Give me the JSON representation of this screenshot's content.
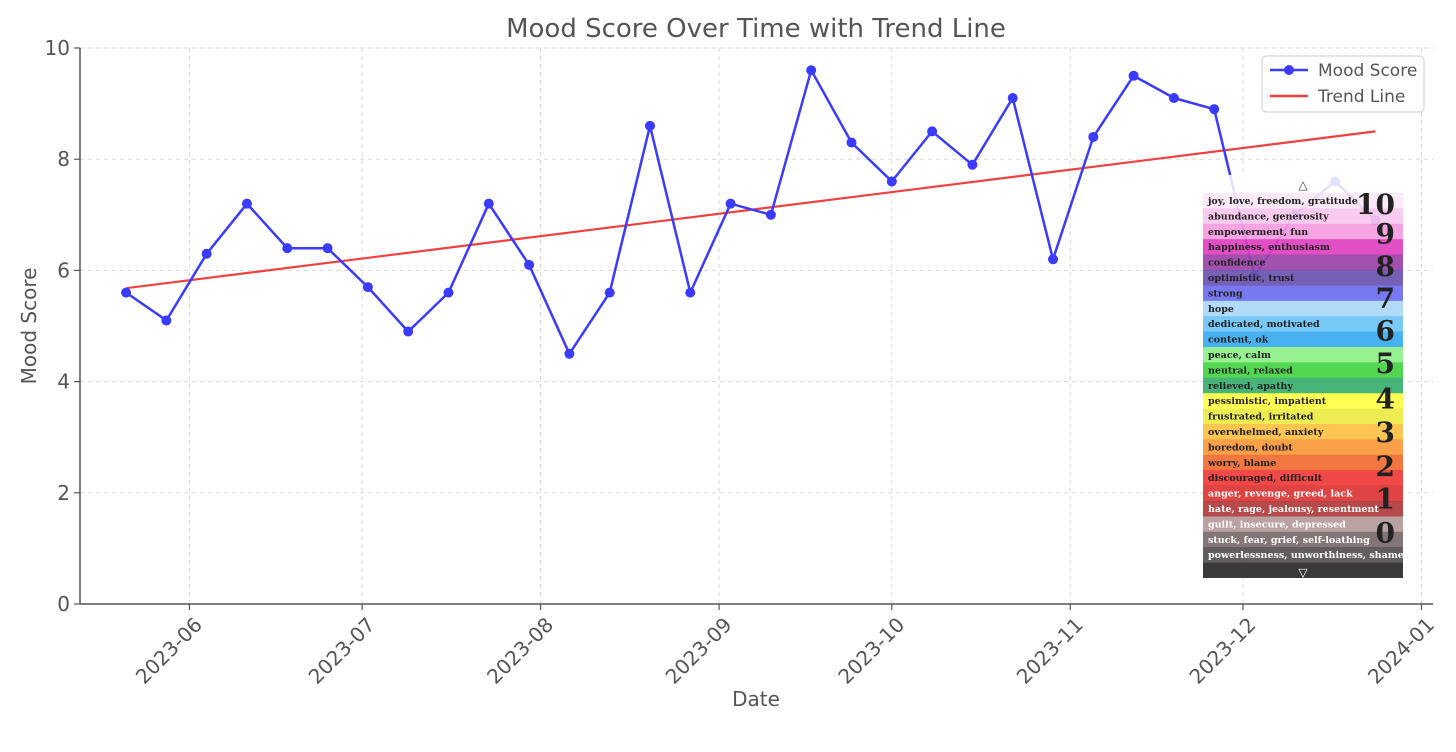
{
  "chart_data": {
    "type": "line",
    "title": "Mood Score Over Time with Trend Line",
    "xlabel": "Date",
    "ylabel": "Mood Score",
    "ylim": [
      0,
      10
    ],
    "yticks": [
      0,
      2,
      4,
      6,
      8,
      10
    ],
    "xlim": [
      "2023-05-13",
      "2024-01-03"
    ],
    "xticks": [
      "2023-06-01",
      "2023-07-01",
      "2023-08-01",
      "2023-09-01",
      "2023-10-01",
      "2023-11-01",
      "2023-12-01",
      "2024-01-01"
    ],
    "xtick_labels": [
      "2023-06",
      "2023-07",
      "2023-08",
      "2023-09",
      "2023-10",
      "2023-11",
      "2023-12",
      "2024-01"
    ],
    "grid": true,
    "legend": "top-right",
    "series": [
      {
        "name": "Mood Score",
        "color": "#3b3bff",
        "marker": "circle",
        "x": [
          "2023-05-21",
          "2023-05-28",
          "2023-06-04",
          "2023-06-11",
          "2023-06-18",
          "2023-06-25",
          "2023-07-02",
          "2023-07-09",
          "2023-07-16",
          "2023-07-23",
          "2023-07-30",
          "2023-08-06",
          "2023-08-13",
          "2023-08-20",
          "2023-08-27",
          "2023-09-03",
          "2023-09-10",
          "2023-09-17",
          "2023-09-24",
          "2023-10-01",
          "2023-10-08",
          "2023-10-15",
          "2023-10-22",
          "2023-10-29",
          "2023-11-05",
          "2023-11-12",
          "2023-11-19",
          "2023-11-26",
          "2023-12-03",
          "2023-12-10",
          "2023-12-17",
          "2023-12-24"
        ],
        "values": [
          5.6,
          5.1,
          6.3,
          7.2,
          6.4,
          6.4,
          5.7,
          4.9,
          5.6,
          7.2,
          6.1,
          4.5,
          5.6,
          8.6,
          5.6,
          7.2,
          7.0,
          9.6,
          8.3,
          7.6,
          8.5,
          7.9,
          9.1,
          6.2,
          8.4,
          9.5,
          9.1,
          8.9,
          5.9,
          7.0,
          7.6,
          6.9
        ]
      },
      {
        "name": "Trend Line",
        "color": "#f04040",
        "x": [
          "2023-05-21",
          "2023-12-24"
        ],
        "values": [
          5.68,
          8.5
        ]
      }
    ]
  },
  "mood_scale": {
    "top_arrow": "△",
    "bottom_arrow": "▽",
    "rows": [
      {
        "label": "joy, love, freedom, gratitude",
        "color": "#fce8f8",
        "text_color": "#222222"
      },
      {
        "label": "abundance, generosity",
        "color": "#f9c8ee",
        "text_color": "#222222"
      },
      {
        "label": "empowerment, fun",
        "color": "#f59ce0",
        "text_color": "#222222"
      },
      {
        "label": "happiness, enthusiasm",
        "color": "#e040c0",
        "text_color": "#222222"
      },
      {
        "label": "confidence",
        "color": "#9a42a8",
        "text_color": "#222222"
      },
      {
        "label": "optimistic, trust",
        "color": "#6a52b0",
        "text_color": "#222222"
      },
      {
        "label": "strong",
        "color": "#6d6df0",
        "text_color": "#222222"
      },
      {
        "label": "hope",
        "color": "#aad8f8",
        "text_color": "#222222"
      },
      {
        "label": "dedicated, motivated",
        "color": "#6cc4f4",
        "text_color": "#222222"
      },
      {
        "label": "content, ok",
        "color": "#38aaf0",
        "text_color": "#222222"
      },
      {
        "label": "peace, calm",
        "color": "#8ef088",
        "text_color": "#222222"
      },
      {
        "label": "neutral, relaxed",
        "color": "#44d444",
        "text_color": "#222222"
      },
      {
        "label": "relieved, apathy",
        "color": "#3aae6e",
        "text_color": "#222222"
      },
      {
        "label": "pessimistic, impatient",
        "color": "#ffff44",
        "text_color": "#222222"
      },
      {
        "label": "frustrated, irritated",
        "color": "#ecec44",
        "text_color": "#222222"
      },
      {
        "label": "overwhelmed, anxiety",
        "color": "#ffc044",
        "text_color": "#222222"
      },
      {
        "label": "boredom, doubt",
        "color": "#f89838",
        "text_color": "#222222"
      },
      {
        "label": "worry, blame",
        "color": "#f06a30",
        "text_color": "#222222"
      },
      {
        "label": "discouraged, difficult",
        "color": "#f03838",
        "text_color": "#222222"
      },
      {
        "label": "anger, revenge, greed, lack",
        "color": "#dc3434",
        "text_color": "#ffffff"
      },
      {
        "label": "hate, rage, jealousy, resentment",
        "color": "#b03a3a",
        "text_color": "#ffffff"
      },
      {
        "label": "guilt, insecure, depressed",
        "color": "#b49a9a",
        "text_color": "#ffffff"
      },
      {
        "label": "stuck, fear, grief, self-loathing",
        "color": "#7a6a6a",
        "text_color": "#ffffff"
      },
      {
        "label": "powerlessness, unworthiness, shame",
        "color": "#555050",
        "text_color": "#ffffff"
      }
    ],
    "footer_color": "#3a3a3a",
    "numbers": [
      {
        "text": "10",
        "row": 0.6
      },
      {
        "text": "9",
        "row": 2.5
      },
      {
        "text": "8",
        "row": 4.6
      },
      {
        "text": "7",
        "row": 6.7
      },
      {
        "text": "6",
        "row": 8.8
      },
      {
        "text": "5",
        "row": 10.9
      },
      {
        "text": "4",
        "row": 13.2
      },
      {
        "text": "3",
        "row": 15.4
      },
      {
        "text": "2",
        "row": 17.6
      },
      {
        "text": "1",
        "row": 19.7
      },
      {
        "text": "0",
        "row": 21.9
      }
    ]
  }
}
